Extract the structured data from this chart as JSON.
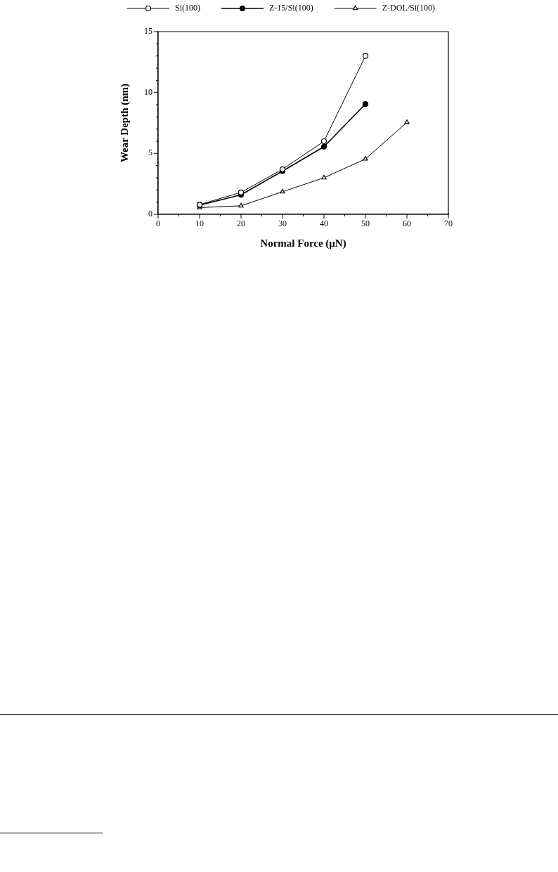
{
  "chart_data": {
    "type": "line",
    "xlabel": "Normal Force (μN)",
    "ylabel": "Wear Depth (nm)",
    "xlim": [
      0,
      70
    ],
    "xticks": [
      0,
      {
        "value": 5,
        "label": null
      },
      10,
      {
        "value": 15,
        "label": null
      },
      20,
      {
        "value": 25,
        "label": null
      },
      30,
      {
        "value": 35,
        "label": null
      },
      40,
      {
        "value": 45,
        "label": null
      },
      50,
      {
        "value": 55,
        "label": null
      },
      60,
      {
        "value": 65,
        "label": null
      },
      70
    ],
    "ylim": [
      0,
      15
    ],
    "yticks": [
      0,
      {
        "value": 1,
        "label": null
      },
      {
        "value": 2,
        "label": null
      },
      {
        "value": 3,
        "label": null
      },
      {
        "value": 4,
        "label": null
      },
      5,
      {
        "value": 6,
        "label": null
      },
      {
        "value": 7,
        "label": null
      },
      {
        "value": 8,
        "label": null
      },
      {
        "value": 9,
        "label": null
      },
      10,
      {
        "value": 11,
        "label": null
      },
      {
        "value": 12,
        "label": null
      },
      {
        "value": 13,
        "label": null
      },
      {
        "value": 14,
        "label": null
      },
      15
    ],
    "grid": false,
    "legend": "top",
    "line_style": "solid",
    "series": [
      {
        "name": "Si(100)",
        "color": "#000000",
        "marker": "circle",
        "x": [
          10,
          20,
          30,
          40,
          50
        ],
        "values": [
          0.8,
          1.8,
          3.7,
          6.0,
          13.0
        ]
      },
      {
        "name": "Z-15/Si(100)",
        "color": "#000000",
        "marker": "circle",
        "x": [
          10,
          20,
          30,
          40,
          50
        ],
        "values": [
          0.75,
          1.6,
          3.55,
          5.55,
          9.05
        ]
      },
      {
        "name": "Z-DOL/Si(100)",
        "color": "#000000",
        "marker": "triangle",
        "x": [
          10,
          20,
          30,
          40,
          50,
          60
        ],
        "values": [
          0.55,
          0.7,
          1.85,
          3.0,
          4.55,
          7.55
        ]
      }
    ]
  }
}
